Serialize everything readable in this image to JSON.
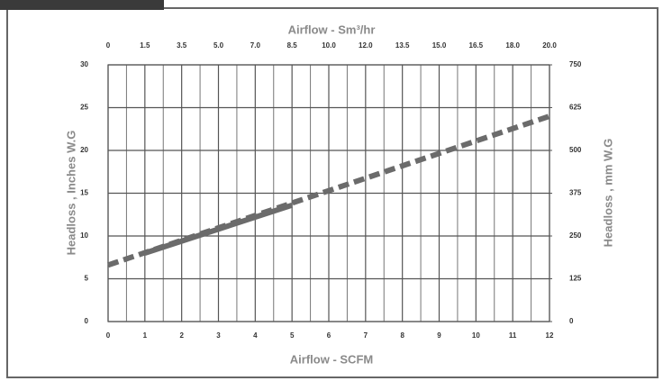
{
  "chart_data": {
    "type": "line",
    "xlabel": "Airflow - SCFM",
    "x2label": "Airflow - Sm³/hr",
    "ylabel": "Headloss , Inches W.G",
    "y2label": "Headloss , mm W.G",
    "xlim": [
      0,
      12
    ],
    "xticks": [
      0,
      1,
      2,
      3,
      4,
      5,
      6,
      7,
      8,
      9,
      10,
      11,
      12
    ],
    "x2_labels": [
      "0",
      "1.5",
      "3.5",
      "5.0",
      "7.0",
      "8.5",
      "10.0",
      "12.0",
      "13.5",
      "15.0",
      "16.5",
      "18.0",
      "20.0"
    ],
    "ylim": [
      0,
      30
    ],
    "yticks": [
      0,
      5,
      10,
      15,
      20,
      25,
      30
    ],
    "y2lim": [
      0,
      750
    ],
    "y2ticks": [
      0,
      125,
      250,
      375,
      500,
      625,
      750
    ],
    "grid": true,
    "series": [
      {
        "color": "#6b6b6b",
        "style": "dashed",
        "x": [
          0,
          12
        ],
        "values": [
          6.6,
          24
        ]
      },
      {
        "color": "#6b6b6b",
        "style": "solid",
        "x": [
          1,
          5
        ],
        "values": [
          8,
          13.6
        ]
      }
    ]
  }
}
